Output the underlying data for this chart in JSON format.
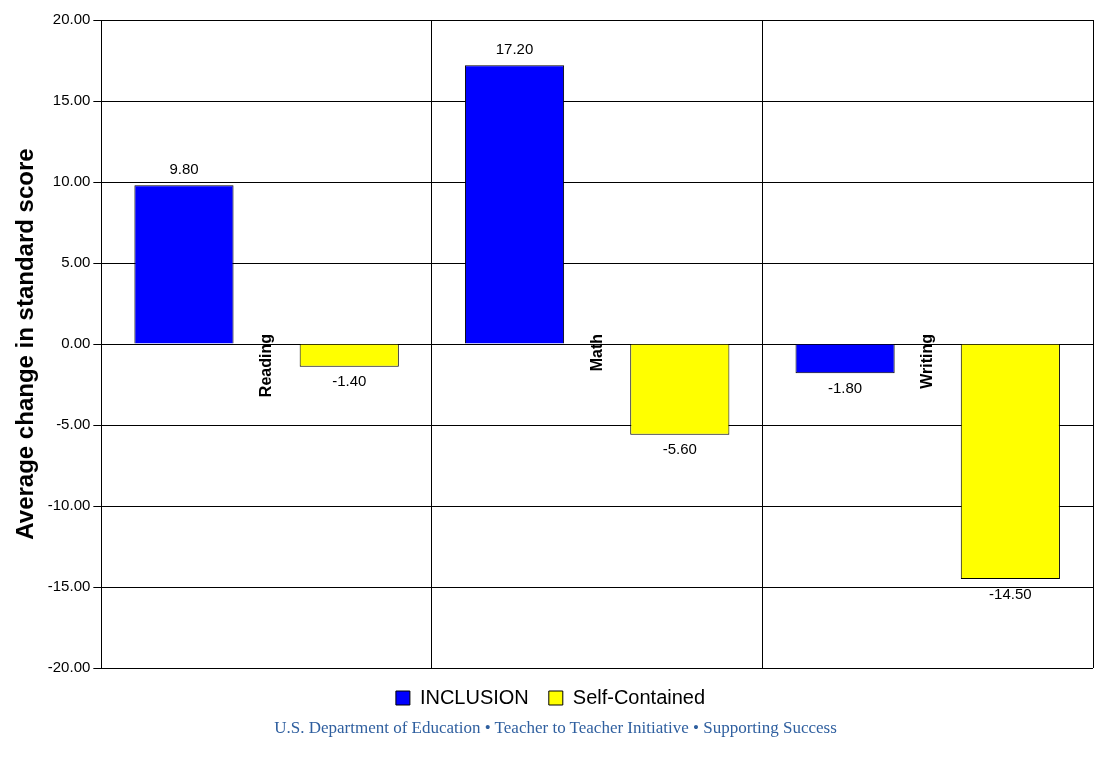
{
  "chart_data": {
    "type": "bar",
    "ylabel": "Average change in standard score",
    "categories": [
      "Reading",
      "Math",
      "Writing"
    ],
    "series": [
      {
        "name": "INCLUSION",
        "color": "#0000ff",
        "values": [
          9.8,
          17.2,
          -1.8
        ],
        "value_labels": [
          "9.80",
          "17.20",
          "-1.80"
        ]
      },
      {
        "name": "Self-Contained",
        "color": "#ffff00",
        "values": [
          -1.4,
          -5.6,
          -14.5
        ],
        "value_labels": [
          "-1.40",
          "-5.60",
          "-14.50"
        ]
      }
    ],
    "ylim": [
      -20,
      20
    ],
    "yticks": [
      {
        "value": -20,
        "label": "-20.00"
      },
      {
        "value": -15,
        "label": "-15.00"
      },
      {
        "value": -10,
        "label": "-10.00"
      },
      {
        "value": -5,
        "label": "-5.00"
      },
      {
        "value": 0,
        "label": "0.00"
      },
      {
        "value": 5,
        "label": "5.00"
      },
      {
        "value": 10,
        "label": "10.00"
      },
      {
        "value": 15,
        "label": "15.00"
      },
      {
        "value": 20,
        "label": "20.00"
      }
    ],
    "grid": true,
    "legend": "bottom",
    "annotations": [
      "U.S. Department of Education • Teacher to Teacher Initiative • Supporting Success"
    ]
  }
}
